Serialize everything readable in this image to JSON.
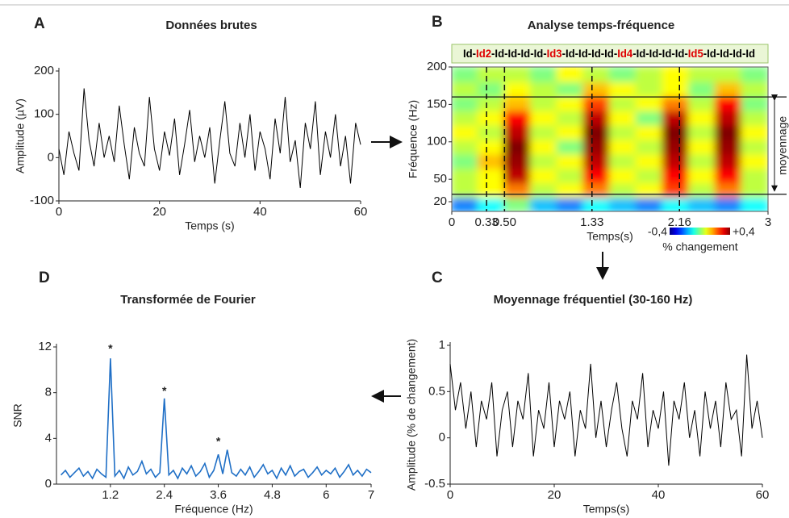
{
  "chart_data": [
    {
      "type": "line",
      "panel": "A",
      "title": "Données brutes",
      "xlabel": "Temps (s)",
      "ylabel": "Amplitude (µV)",
      "color": "#000000",
      "xlim": [
        0,
        60
      ],
      "xticks": [
        0,
        20,
        40,
        60
      ],
      "ylim": [
        -100,
        200
      ],
      "yticks": [
        -100,
        0,
        100,
        200
      ],
      "x": [
        0,
        1,
        2,
        3,
        4,
        5,
        6,
        7,
        8,
        9,
        10,
        11,
        12,
        13,
        14,
        15,
        16,
        17,
        18,
        19,
        20,
        21,
        22,
        23,
        24,
        25,
        26,
        27,
        28,
        29,
        30,
        31,
        32,
        33,
        34,
        35,
        36,
        37,
        38,
        39,
        40,
        41,
        42,
        43,
        44,
        45,
        46,
        47,
        48,
        49,
        50,
        51,
        52,
        53,
        54,
        55,
        56,
        57,
        58,
        59,
        60
      ],
      "values": [
        20,
        -40,
        60,
        10,
        -30,
        160,
        40,
        -20,
        80,
        0,
        50,
        -10,
        120,
        30,
        -50,
        70,
        10,
        -20,
        140,
        20,
        -30,
        60,
        5,
        90,
        -40,
        30,
        110,
        -10,
        50,
        0,
        70,
        -60,
        40,
        130,
        10,
        -20,
        80,
        0,
        100,
        -30,
        60,
        20,
        -50,
        90,
        10,
        140,
        -10,
        40,
        -70,
        80,
        20,
        130,
        -40,
        60,
        0,
        100,
        -20,
        50,
        -60,
        80,
        30
      ]
    },
    {
      "type": "heatmap",
      "panel": "B",
      "title": "Analyse temps-fréquence",
      "xlabel": "Temps(s)",
      "ylabel": "Fréquence (Hz)",
      "xlim": [
        0,
        3
      ],
      "xticks": [
        0,
        0.33,
        {
          "value": 0.5,
          "label": "0.50"
        },
        1.33,
        2.16,
        3
      ],
      "ylim": [
        20,
        200
      ],
      "yticks": [
        20,
        50,
        100,
        150,
        200
      ],
      "band": [
        30,
        160
      ],
      "band_label": "moyennage",
      "sequence": [
        {
          "text": "Id-",
          "color": "#000000"
        },
        {
          "text": "Id2",
          "color": "#e00000"
        },
        {
          "text": "-Id-Id-Id-Id-",
          "color": "#000000"
        },
        {
          "text": "Id3",
          "color": "#e00000"
        },
        {
          "text": "-Id-Id-Id-Id-",
          "color": "#000000"
        },
        {
          "text": "Id4",
          "color": "#e00000"
        },
        {
          "text": "-Id-Id-Id-Id-",
          "color": "#000000"
        },
        {
          "text": "Id5",
          "color": "#e00000"
        },
        {
          "text": "-Id-Id-Id-Id",
          "color": "#000000"
        }
      ],
      "colormap": "jet",
      "clim": [
        -0.4,
        0.4
      ],
      "cticks": [
        {
          "value": -0.4,
          "label": "-0,4"
        },
        {
          "value": 0.4,
          "label": "+0,4"
        }
      ],
      "clabel": "% changement",
      "z": [
        [
          -0.2,
          -0.1,
          0,
          -0.15,
          -0.2,
          -0.1,
          -0.15,
          -0.2,
          -0.1,
          -0.15,
          -0.2,
          -0.1
        ],
        [
          0.05,
          0.1,
          0.2,
          0.05,
          0.1,
          0.2,
          0.05,
          0.1,
          0.25,
          0.05,
          0.2,
          0.05
        ],
        [
          0.05,
          0.1,
          0.35,
          0.1,
          0.05,
          0.3,
          0.1,
          0.05,
          0.3,
          0.1,
          0.3,
          0.05
        ],
        [
          0,
          0.15,
          0.38,
          0.05,
          0.1,
          0.35,
          0.05,
          0.1,
          0.35,
          0.05,
          0.35,
          0.1
        ],
        [
          0.05,
          0.1,
          0.4,
          0.1,
          0,
          0.38,
          0.1,
          0.05,
          0.38,
          0.1,
          0.38,
          0.05
        ],
        [
          0.1,
          0.05,
          0.35,
          0.05,
          0.1,
          0.4,
          0.05,
          0.1,
          0.4,
          0.05,
          0.4,
          0.1
        ],
        [
          0.05,
          0.1,
          0.3,
          0.1,
          0.05,
          0.35,
          0.1,
          0,
          0.35,
          0.1,
          0.35,
          0.05
        ],
        [
          0,
          0.05,
          0.15,
          0.05,
          0.1,
          0.25,
          0.05,
          0.1,
          0.2,
          0.05,
          0.3,
          0
        ],
        [
          0.05,
          0,
          0.1,
          0.05,
          0,
          0.15,
          0.1,
          0.05,
          0.1,
          0,
          0.15,
          0.05
        ],
        [
          0,
          0.05,
          0.05,
          0,
          0.1,
          0.05,
          0,
          0.05,
          0.1,
          0.05,
          0.05,
          0
        ]
      ]
    },
    {
      "type": "line",
      "panel": "C",
      "title": "Moyennage fréquentiel (30-160 Hz)",
      "xlabel": "Temps(s)",
      "ylabel": "Amplitude (% de changement)",
      "color": "#000000",
      "xlim": [
        0,
        60
      ],
      "xticks": [
        0,
        20,
        40,
        60
      ],
      "ylim": [
        -0.5,
        1
      ],
      "yticks": [
        -0.5,
        0,
        0.5,
        1
      ],
      "x": [
        0,
        1,
        2,
        3,
        4,
        5,
        6,
        7,
        8,
        9,
        10,
        11,
        12,
        13,
        14,
        15,
        16,
        17,
        18,
        19,
        20,
        21,
        22,
        23,
        24,
        25,
        26,
        27,
        28,
        29,
        30,
        31,
        32,
        33,
        34,
        35,
        36,
        37,
        38,
        39,
        40,
        41,
        42,
        43,
        44,
        45,
        46,
        47,
        48,
        49,
        50,
        51,
        52,
        53,
        54,
        55,
        56,
        57,
        58,
        59,
        60
      ],
      "values": [
        0.8,
        0.3,
        0.6,
        0.1,
        0.5,
        -0.1,
        0.4,
        0.2,
        0.6,
        -0.2,
        0.3,
        0.5,
        -0.1,
        0.4,
        0.2,
        0.7,
        -0.2,
        0.3,
        0.1,
        0.6,
        -0.1,
        0.4,
        0.2,
        0.5,
        -0.2,
        0.3,
        0.1,
        0.8,
        0.0,
        0.4,
        -0.1,
        0.3,
        0.6,
        0.1,
        -0.2,
        0.4,
        0.2,
        0.7,
        -0.1,
        0.3,
        0.1,
        0.5,
        -0.3,
        0.4,
        0.2,
        0.6,
        0.0,
        0.3,
        -0.2,
        0.5,
        0.1,
        0.4,
        -0.1,
        0.6,
        0.2,
        0.3,
        -0.2,
        0.9,
        0.1,
        0.4,
        0.0
      ]
    },
    {
      "type": "line",
      "panel": "D",
      "title": "Transformée de Fourier",
      "xlabel": "Fréquence (Hz)",
      "ylabel": "SNR",
      "color": "#1f6fc6",
      "xlim": [
        0,
        7
      ],
      "xticks": [
        1.2,
        2.4,
        3.6,
        4.8,
        6,
        7
      ],
      "ylim": [
        0,
        12
      ],
      "yticks": [
        0,
        4,
        8,
        12
      ],
      "x": [
        0.1,
        0.2,
        0.3,
        0.4,
        0.5,
        0.6,
        0.7,
        0.8,
        0.9,
        1.0,
        1.1,
        1.2,
        1.3,
        1.4,
        1.5,
        1.6,
        1.7,
        1.8,
        1.9,
        2.0,
        2.1,
        2.2,
        2.3,
        2.4,
        2.5,
        2.6,
        2.7,
        2.8,
        2.9,
        3.0,
        3.1,
        3.2,
        3.3,
        3.4,
        3.5,
        3.6,
        3.7,
        3.8,
        3.9,
        4.0,
        4.1,
        4.2,
        4.3,
        4.4,
        4.5,
        4.6,
        4.7,
        4.8,
        4.9,
        5.0,
        5.1,
        5.2,
        5.3,
        5.4,
        5.5,
        5.6,
        5.7,
        5.8,
        5.9,
        6.0,
        6.1,
        6.2,
        6.3,
        6.4,
        6.5,
        6.6,
        6.7,
        6.8,
        6.9,
        7.0
      ],
      "values": [
        0.8,
        1.2,
        0.6,
        1.0,
        1.4,
        0.7,
        1.1,
        0.5,
        1.3,
        0.9,
        0.6,
        11.0,
        0.7,
        1.2,
        0.5,
        1.5,
        0.8,
        1.1,
        2.0,
        0.9,
        1.3,
        0.6,
        1.0,
        7.5,
        0.8,
        1.2,
        0.5,
        1.4,
        0.9,
        1.6,
        0.7,
        1.1,
        1.8,
        0.6,
        1.2,
        2.6,
        0.9,
        3.0,
        1.0,
        0.7,
        1.3,
        0.8,
        1.5,
        0.6,
        1.1,
        1.7,
        0.9,
        1.2,
        0.5,
        1.4,
        0.8,
        1.6,
        0.7,
        1.1,
        1.3,
        0.6,
        1.0,
        1.5,
        0.8,
        1.2,
        0.9,
        1.4,
        0.6,
        1.1,
        1.7,
        0.8,
        1.2,
        0.7,
        1.3,
        1.0
      ],
      "annotations": [
        {
          "x": 1.2,
          "y": 11.8,
          "text": "*"
        },
        {
          "x": 2.4,
          "y": 8.1,
          "text": "*"
        },
        {
          "x": 3.6,
          "y": 3.7,
          "text": "*"
        }
      ]
    }
  ]
}
